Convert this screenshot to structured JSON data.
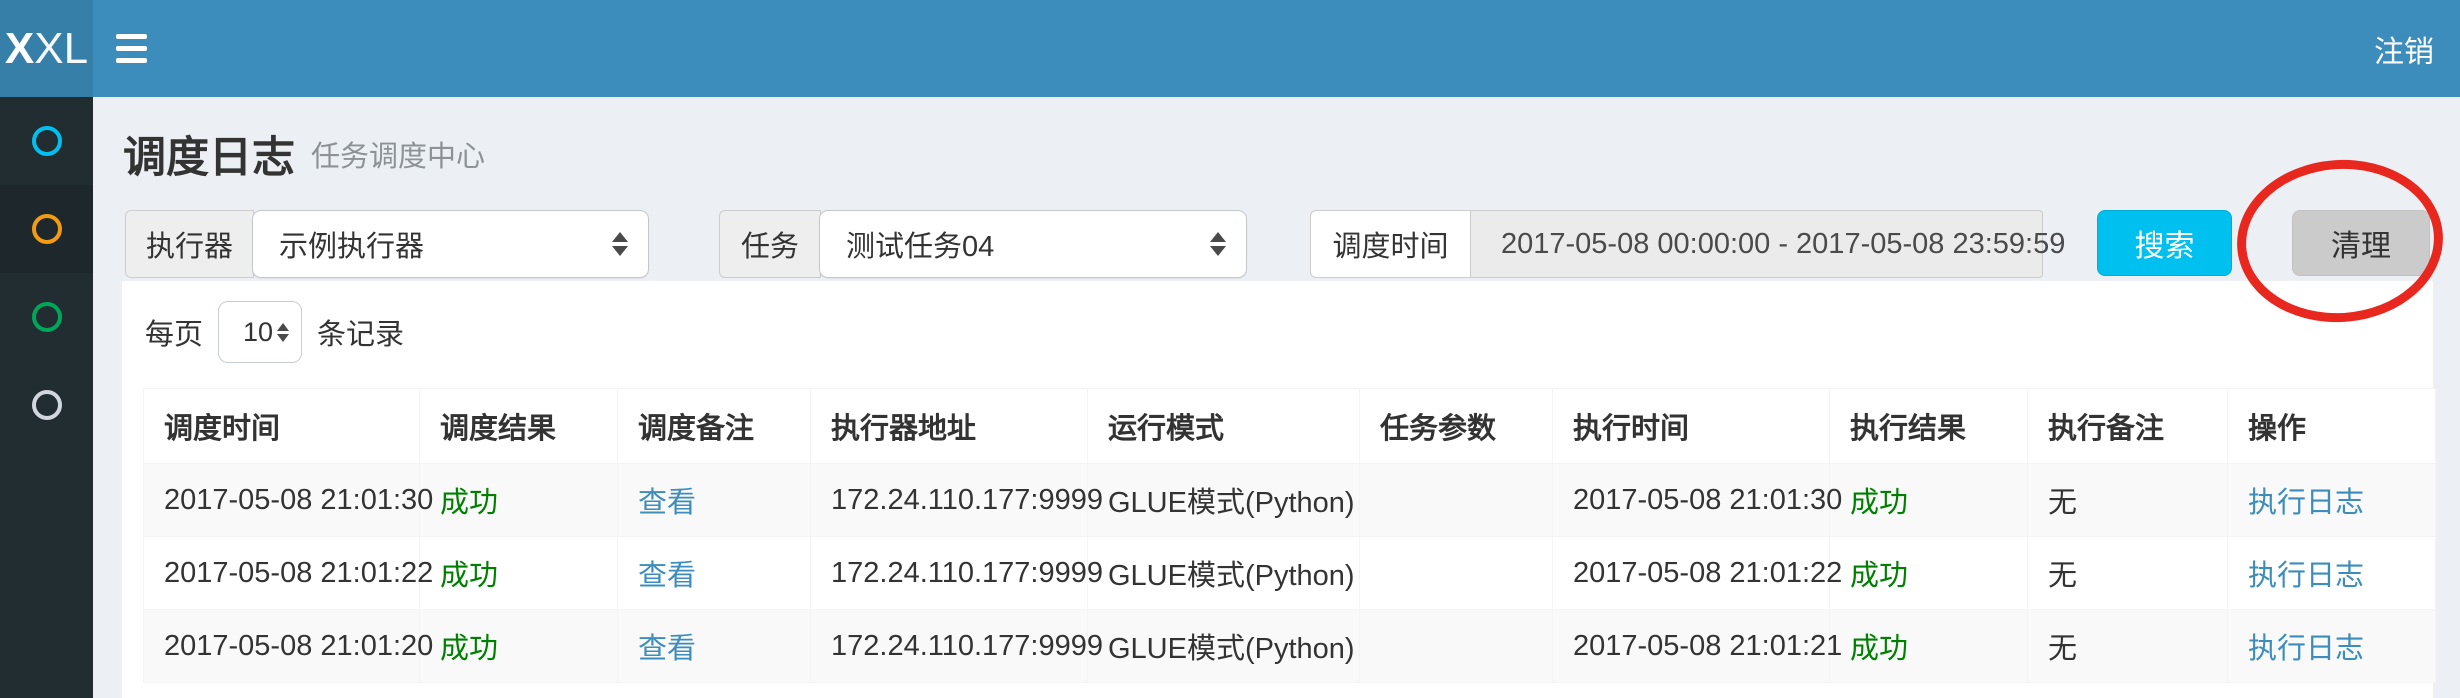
{
  "navbar": {
    "logo_bold": "X",
    "logo_rest": "XL",
    "logout_label": "注销"
  },
  "sidebar": {
    "items": [
      {
        "name": "menu-item-1",
        "icon": "circle-o-icon",
        "color": "#00c0ef",
        "active": false
      },
      {
        "name": "menu-item-2",
        "icon": "circle-o-icon",
        "color": "#f39c12",
        "active": true
      },
      {
        "name": "menu-item-3",
        "icon": "circle-o-icon",
        "color": "#00a65a",
        "active": false
      },
      {
        "name": "menu-item-4",
        "icon": "circle-o-icon",
        "color": "#d2d6de",
        "active": false
      }
    ]
  },
  "header": {
    "title": "调度日志",
    "subtitle": "任务调度中心"
  },
  "filters": {
    "executor": {
      "label": "执行器",
      "value": "示例执行器"
    },
    "job": {
      "label": "任务",
      "value": "测试任务04"
    },
    "time": {
      "label": "调度时间",
      "value": "2017-05-08 00:00:00 - 2017-05-08 23:59:59"
    },
    "search_label": "搜索",
    "clear_label": "清理"
  },
  "page_size": {
    "prefix": "每页",
    "value": "10",
    "suffix": "条记录"
  },
  "table": {
    "columns": [
      {
        "label": "调度时间",
        "key": "trigger_time",
        "style": "plain"
      },
      {
        "label": "调度结果",
        "key": "trigger_result",
        "style": "success"
      },
      {
        "label": "调度备注",
        "key": "trigger_msg",
        "style": "link"
      },
      {
        "label": "执行器地址",
        "key": "address",
        "style": "plain"
      },
      {
        "label": "运行模式",
        "key": "glue_type",
        "style": "plain"
      },
      {
        "label": "任务参数",
        "key": "job_param",
        "style": "plain"
      },
      {
        "label": "执行时间",
        "key": "handle_time",
        "style": "plain"
      },
      {
        "label": "执行结果",
        "key": "handle_result",
        "style": "success"
      },
      {
        "label": "执行备注",
        "key": "handle_msg",
        "style": "plain"
      },
      {
        "label": "操作",
        "key": "action",
        "style": "link"
      }
    ],
    "rows": [
      {
        "trigger_time": "2017-05-08 21:01:30",
        "trigger_result": "成功",
        "trigger_msg": "查看",
        "address": "172.24.110.177:9999",
        "glue_type": "GLUE模式(Python)",
        "job_param": "",
        "handle_time": "2017-05-08 21:01:30",
        "handle_result": "成功",
        "handle_msg": "无",
        "action": "执行日志"
      },
      {
        "trigger_time": "2017-05-08 21:01:22",
        "trigger_result": "成功",
        "trigger_msg": "查看",
        "address": "172.24.110.177:9999",
        "glue_type": "GLUE模式(Python)",
        "job_param": "",
        "handle_time": "2017-05-08 21:01:22",
        "handle_result": "成功",
        "handle_msg": "无",
        "action": "执行日志"
      },
      {
        "trigger_time": "2017-05-08 21:01:20",
        "trigger_result": "成功",
        "trigger_msg": "查看",
        "address": "172.24.110.177:9999",
        "glue_type": "GLUE模式(Python)",
        "job_param": "",
        "handle_time": "2017-05-08 21:01:21",
        "handle_result": "成功",
        "handle_msg": "无",
        "action": "执行日志"
      }
    ]
  },
  "colors": {
    "navbar": "#3c8dbc",
    "logo_bg": "#367fa9",
    "sidebar_bg": "#222d32",
    "sidebar_active_bg": "#1e282c",
    "page_bg": "#ecf0f5",
    "search_button": "#00c0ef",
    "clear_button": "#cbcbcb",
    "success_text": "#008000",
    "link_text": "#3c8dbc",
    "marker": "#e8281e"
  }
}
